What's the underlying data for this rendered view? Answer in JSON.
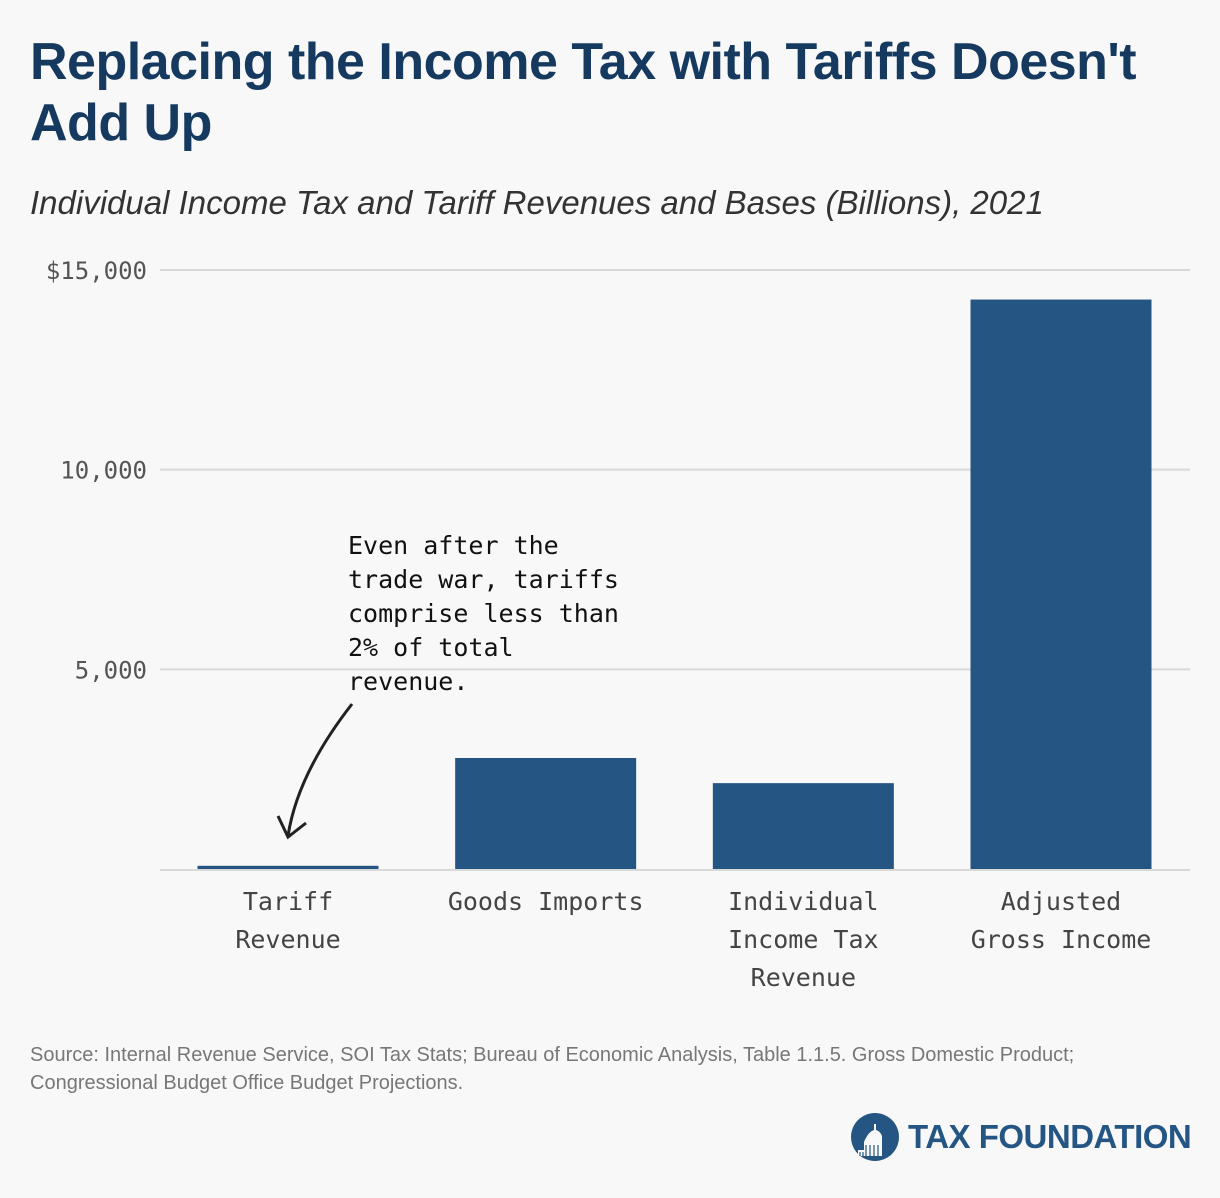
{
  "header": {
    "title": "Replacing the Income Tax with Tariffs Doesn't Add Up",
    "subtitle": "Individual Income Tax and Tariff Revenues and Bases (Billions), 2021"
  },
  "chart_data": {
    "type": "bar",
    "title": "Replacing the Income Tax with Tariffs Doesn't Add Up",
    "subtitle": "Individual Income Tax and Tariff Revenues and Bases (Billions), 2021",
    "categories": [
      [
        "Tariff",
        "Revenue"
      ],
      [
        "Goods Imports"
      ],
      [
        "Individual",
        "Income Tax",
        "Revenue"
      ],
      [
        "Adjusted",
        "Gross Income"
      ]
    ],
    "values": [
      80,
      2780,
      2150,
      14260
    ],
    "xlabel": "",
    "ylabel": "",
    "ylim": [
      0,
      15000
    ],
    "yticks": [
      5000,
      10000,
      15000
    ],
    "ytick_labels": [
      "5,000",
      "10,000",
      "$15,000"
    ],
    "grid": true,
    "bar_color": "#245583",
    "annotation": {
      "lines": [
        "Even after the",
        "trade war, tariffs",
        "comprise less than",
        "2% of total",
        "revenue."
      ],
      "points_to": "Tariff Revenue"
    }
  },
  "footer": {
    "source": "Source: Internal Revenue Service, SOI Tax Stats; Bureau of Economic Analysis, Table 1.1.5. Gross Domestic Product; Congressional Budget Office Budget Projections.",
    "logo_text": "TAX FOUNDATION"
  },
  "colors": {
    "title": "#163a5f",
    "bar": "#245583",
    "grid": "#d8d8d8",
    "brand": "#245583"
  }
}
